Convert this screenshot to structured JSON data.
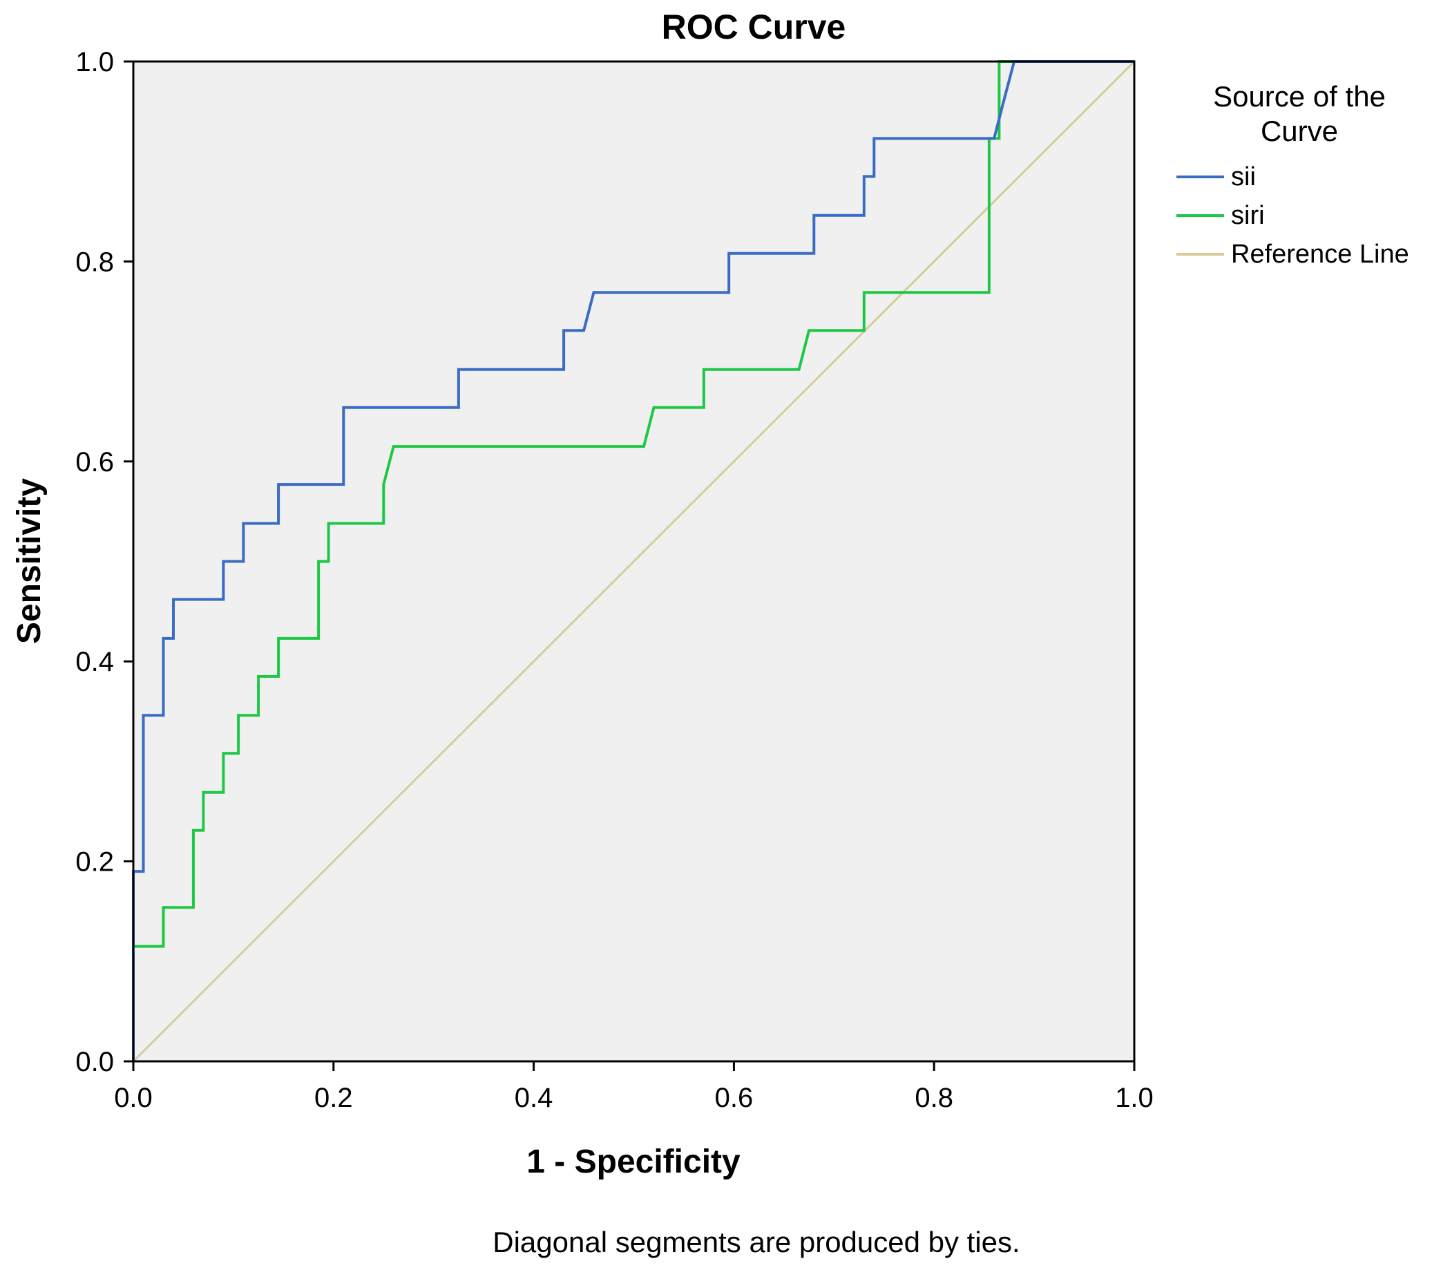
{
  "chart_data": {
    "type": "line",
    "title": "ROC Curve",
    "xlabel": "1 - Specificity",
    "ylabel": "Sensitivity",
    "xlim": [
      0,
      1
    ],
    "ylim": [
      0,
      1
    ],
    "x_ticks": [
      "0.0",
      "0.2",
      "0.4",
      "0.6",
      "0.8",
      "1.0"
    ],
    "y_ticks": [
      "0.0",
      "0.2",
      "0.4",
      "0.6",
      "0.8",
      "1.0"
    ],
    "grid": false,
    "plot_background": "#f0f0f0",
    "legend": {
      "title": "Source of the Curve",
      "title_lines": [
        "Source of the",
        "Curve"
      ],
      "placement": "right"
    },
    "footnote": "Diagonal segments are produced by ties.",
    "series": [
      {
        "name": "sii",
        "color": "#3b6cc4",
        "x": [
          0.0,
          0.0,
          0.0,
          0.01,
          0.01,
          0.03,
          0.03,
          0.04,
          0.04,
          0.09,
          0.09,
          0.11,
          0.11,
          0.145,
          0.145,
          0.21,
          0.21,
          0.325,
          0.325,
          0.43,
          0.43,
          0.45,
          0.46,
          0.595,
          0.595,
          0.68,
          0.68,
          0.73,
          0.73,
          0.74,
          0.74,
          0.86,
          0.87,
          0.88,
          1.0
        ],
        "y": [
          0.0,
          0.19,
          0.19,
          0.19,
          0.346,
          0.346,
          0.423,
          0.423,
          0.462,
          0.462,
          0.5,
          0.5,
          0.538,
          0.538,
          0.577,
          0.577,
          0.654,
          0.654,
          0.692,
          0.692,
          0.731,
          0.731,
          0.769,
          0.769,
          0.808,
          0.808,
          0.846,
          0.846,
          0.885,
          0.885,
          0.923,
          0.923,
          0.962,
          1.0,
          1.0
        ]
      },
      {
        "name": "siri",
        "color": "#1ec846",
        "x": [
          0.0,
          0.0,
          0.03,
          0.03,
          0.06,
          0.06,
          0.07,
          0.07,
          0.09,
          0.09,
          0.105,
          0.105,
          0.125,
          0.125,
          0.145,
          0.145,
          0.185,
          0.185,
          0.195,
          0.195,
          0.25,
          0.25,
          0.26,
          0.51,
          0.52,
          0.57,
          0.57,
          0.665,
          0.675,
          0.73,
          0.73,
          0.855,
          0.855,
          0.865,
          0.865,
          0.87,
          1.0
        ],
        "y": [
          0.0,
          0.115,
          0.115,
          0.154,
          0.154,
          0.231,
          0.231,
          0.269,
          0.269,
          0.308,
          0.308,
          0.346,
          0.346,
          0.385,
          0.385,
          0.423,
          0.423,
          0.5,
          0.5,
          0.538,
          0.538,
          0.577,
          0.615,
          0.615,
          0.654,
          0.654,
          0.692,
          0.692,
          0.731,
          0.731,
          0.769,
          0.769,
          0.923,
          0.923,
          1.0,
          1.0,
          1.0
        ]
      },
      {
        "name": "Reference Line",
        "color": "#d8cc98",
        "x": [
          0.0,
          1.0
        ],
        "y": [
          0.0,
          1.0
        ]
      }
    ]
  }
}
